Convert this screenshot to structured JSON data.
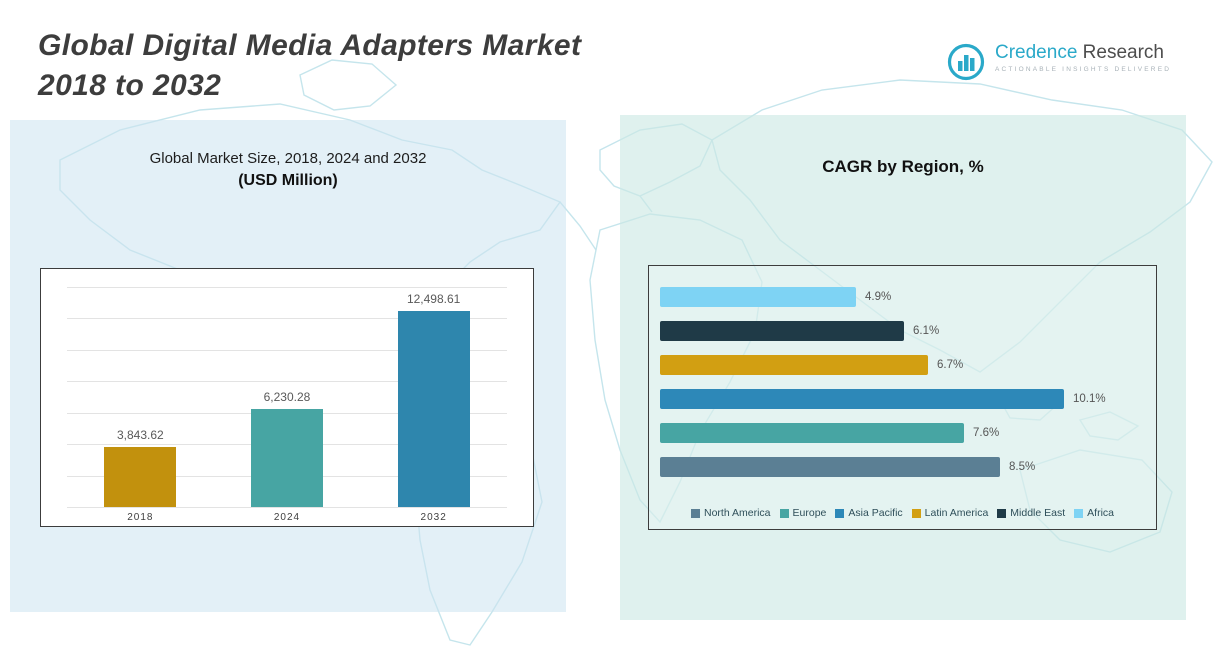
{
  "header": {
    "title_line1": "Global Digital Media Adapters Market",
    "title_line2": "2018 to 2032",
    "logo": {
      "brand_primary": "Credence",
      "brand_secondary": " Research",
      "tagline": "Actionable Insights Delivered",
      "accent_color": "#2aa9c9"
    }
  },
  "left_panel": {
    "title": "Global Market Size, 2018, 2024 and 2032",
    "subtitle": "(USD Million)"
  },
  "right_panel": {
    "title": "CAGR by Region, %"
  },
  "chart_data": [
    {
      "type": "bar",
      "orientation": "vertical",
      "title": "Global Market Size, 2018, 2024 and 2032 (USD Million)",
      "categories": [
        "2018",
        "2024",
        "2032"
      ],
      "values": [
        3843.62,
        6230.28,
        12498.61
      ],
      "value_labels": [
        "3,843.62",
        "6,230.28",
        "12,498.61"
      ],
      "bar_colors": [
        "#c2910d",
        "#47a5a3",
        "#2e86ad"
      ],
      "xlabel": "",
      "ylabel": "USD Million",
      "ylim": [
        0,
        14000
      ],
      "grid": true,
      "legend": false
    },
    {
      "type": "bar",
      "orientation": "horizontal",
      "title": "CAGR by Region, %",
      "categories": [
        "Africa",
        "Middle East",
        "Latin America",
        "Asia Pacific",
        "Europe",
        "North America"
      ],
      "values": [
        4.9,
        6.1,
        6.7,
        10.1,
        7.6,
        8.5
      ],
      "value_labels": [
        "4.9%",
        "6.1%",
        "6.7%",
        "10.1%",
        "7.6%",
        "8.5%"
      ],
      "bar_colors": [
        "#7ed3f4",
        "#1f3a47",
        "#d29f12",
        "#2d88b8",
        "#47a5a3",
        "#5b7f94"
      ],
      "xlabel": "CAGR %",
      "ylabel": "",
      "xlim": [
        0,
        11
      ],
      "grid": false,
      "legend_position": "bottom",
      "legend": [
        {
          "label": "North America",
          "color": "#5b7f94"
        },
        {
          "label": "Europe",
          "color": "#47a5a3"
        },
        {
          "label": "Asia Pacific",
          "color": "#2d88b8"
        },
        {
          "label": "Latin America",
          "color": "#d29f12"
        },
        {
          "label": "Middle East",
          "color": "#1f3a47"
        },
        {
          "label": "Africa",
          "color": "#7ed3f4"
        }
      ]
    }
  ]
}
